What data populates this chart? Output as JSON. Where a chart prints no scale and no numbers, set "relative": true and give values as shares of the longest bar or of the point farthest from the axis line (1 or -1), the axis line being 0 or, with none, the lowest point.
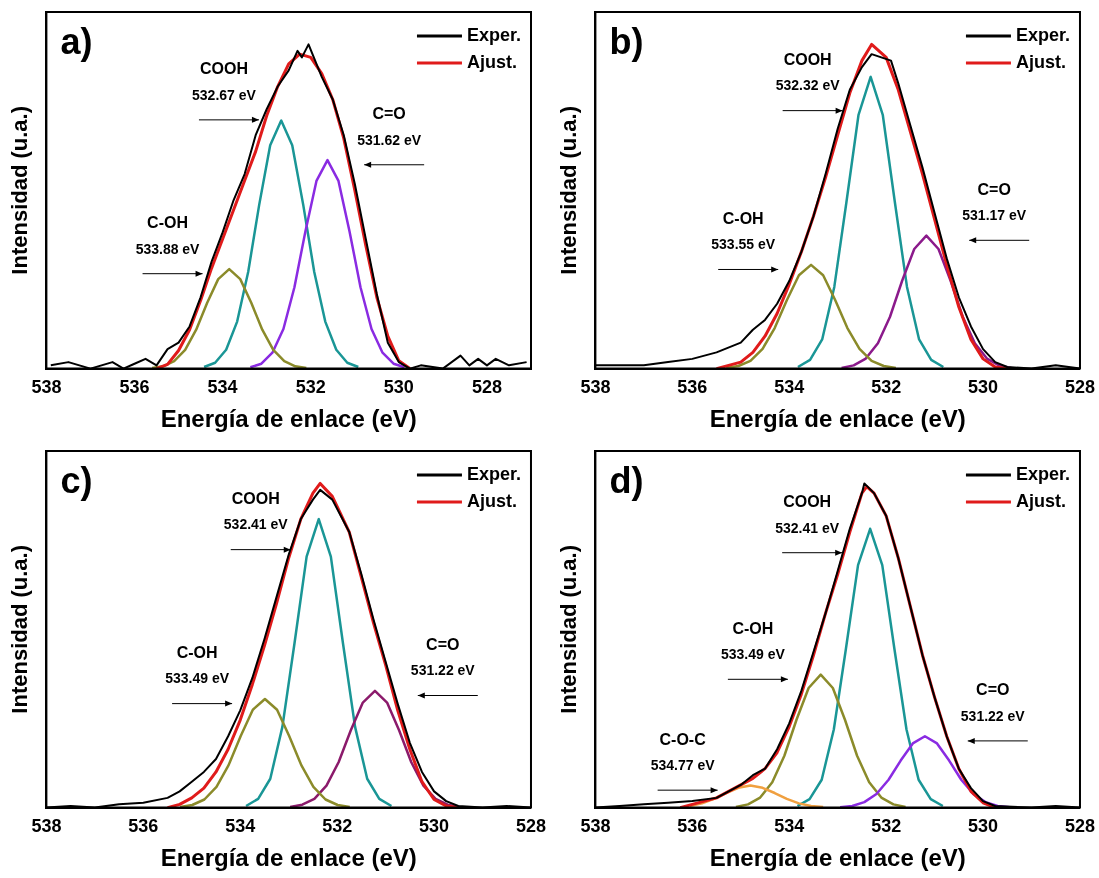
{
  "chart_data": [
    {
      "type": "line",
      "title": "a)",
      "xlabel": "Energía de enlace (eV)",
      "ylabel": "Intensidad (u.a.)",
      "relative": true,
      "legend": "top right",
      "xlim": [
        538,
        527
      ],
      "xticks": [
        538,
        536,
        534,
        532,
        530,
        528
      ],
      "annotations": [
        "COOH",
        "532.67 eV",
        "C=O",
        "531.62 eV",
        "C-OH",
        "533.88 eV"
      ],
      "series": [
        {
          "name": "Exper.",
          "color": "#000000",
          "x": [
            537.9,
            537.5,
            537,
            536.5,
            536.25,
            536,
            535.75,
            535.5,
            535.25,
            535,
            534.75,
            534.5,
            534.25,
            534,
            533.75,
            533.5,
            533.25,
            533,
            532.75,
            532.5,
            532.3,
            532.2,
            532.05,
            531.9,
            531.75,
            531.5,
            531.25,
            531,
            530.75,
            530.5,
            530.25,
            530,
            529.75,
            529.5,
            529,
            528.6,
            528.4,
            528.2,
            528,
            527.8,
            527.5,
            527.1
          ],
          "values": [
            0.01,
            0.02,
            0,
            0.02,
            0,
            0.015,
            0.03,
            0.01,
            0.06,
            0.08,
            0.13,
            0.22,
            0.33,
            0.42,
            0.52,
            0.6,
            0.72,
            0.8,
            0.87,
            0.92,
            0.98,
            0.96,
            1,
            0.95,
            0.9,
            0.83,
            0.72,
            0.57,
            0.4,
            0.23,
            0.08,
            0.02,
            0,
            0.01,
            0,
            0.04,
            0.01,
            0.03,
            0.01,
            0.03,
            0.01,
            0.02
          ]
        },
        {
          "name": "Ajust.",
          "color": "#e01b1b",
          "x": [
            535.5,
            535.25,
            535,
            534.75,
            534.5,
            534.25,
            534,
            533.75,
            533.5,
            533.25,
            533,
            532.75,
            532.5,
            532.25,
            532,
            531.75,
            531.5,
            531.25,
            531,
            530.75,
            530.5,
            530.25,
            530,
            529.75
          ],
          "values": [
            0,
            0.013,
            0.056,
            0.12,
            0.21,
            0.31,
            0.4,
            0.49,
            0.58,
            0.67,
            0.78,
            0.87,
            0.94,
            0.97,
            0.96,
            0.91,
            0.83,
            0.71,
            0.55,
            0.38,
            0.22,
            0.1,
            0.024,
            0
          ]
        },
        {
          "color": "#1a9696",
          "x": [
            530.92,
            531.17,
            531.42,
            531.67,
            531.92,
            532.17,
            532.42,
            532.67,
            532.92,
            533.17,
            533.42,
            533.67,
            533.92,
            534.17,
            534.42
          ],
          "values": [
            0.005,
            0.018,
            0.058,
            0.145,
            0.298,
            0.505,
            0.689,
            0.765,
            0.689,
            0.505,
            0.298,
            0.145,
            0.058,
            0.018,
            0.005
          ]
        },
        {
          "color": "#8a2be2",
          "x": [
            529.87,
            530.12,
            530.37,
            530.62,
            530.87,
            531.12,
            531.37,
            531.62,
            531.87,
            532.12,
            532.37,
            532.62,
            532.87,
            533.12,
            533.37
          ],
          "values": [
            0.004,
            0.015,
            0.049,
            0.122,
            0.251,
            0.424,
            0.579,
            0.643,
            0.579,
            0.424,
            0.251,
            0.122,
            0.049,
            0.015,
            0.004
          ]
        },
        {
          "color": "#8b8b2a",
          "x": [
            532.1,
            532.35,
            532.6,
            532.85,
            533.1,
            533.35,
            533.6,
            533.85,
            534.1,
            534.35,
            534.6,
            534.85,
            535.1,
            535.35,
            535.6
          ],
          "values": [
            0.002,
            0.007,
            0.023,
            0.058,
            0.12,
            0.203,
            0.276,
            0.307,
            0.276,
            0.203,
            0.12,
            0.058,
            0.023,
            0.007,
            0.002
          ]
        }
      ]
    },
    {
      "type": "line",
      "title": "b)",
      "xlabel": "Energía de enlace (eV)",
      "ylabel": "Intensidad (u.a.)",
      "relative": true,
      "legend": "top right",
      "xlim": [
        538,
        528
      ],
      "xticks": [
        538,
        536,
        534,
        532,
        530,
        528
      ],
      "annotations": [
        "COOH",
        "532.32 eV",
        "C=O",
        "531.17 eV",
        "C-OH",
        "533.55 eV"
      ],
      "series": [
        {
          "name": "Exper.",
          "color": "#000000",
          "x": [
            538,
            537.5,
            537,
            536.5,
            536,
            535.5,
            535,
            534.75,
            534.5,
            534.25,
            534,
            533.75,
            533.5,
            533.25,
            533,
            532.75,
            532.5,
            532.3,
            532.1,
            531.9,
            531.75,
            531.5,
            531.25,
            531,
            530.75,
            530.5,
            530.25,
            530,
            529.75,
            529.5,
            529,
            528.5,
            528
          ],
          "values": [
            0.01,
            0.01,
            0.01,
            0.02,
            0.03,
            0.05,
            0.08,
            0.12,
            0.15,
            0.2,
            0.27,
            0.36,
            0.47,
            0.6,
            0.74,
            0.86,
            0.93,
            0.97,
            0.96,
            0.95,
            0.88,
            0.75,
            0.62,
            0.48,
            0.34,
            0.22,
            0.13,
            0.06,
            0.02,
            0.005,
            0,
            0.01,
            0
          ]
        },
        {
          "name": "Ajust.",
          "color": "#e01b1b",
          "x": [
            535.5,
            535,
            534.75,
            534.5,
            534.25,
            534,
            533.75,
            533.5,
            533.25,
            533,
            532.75,
            532.5,
            532.3,
            532,
            531.75,
            531.5,
            531.25,
            531,
            530.75,
            530.5,
            530.25,
            530,
            529.75,
            529.5
          ],
          "values": [
            0,
            0.02,
            0.05,
            0.1,
            0.17,
            0.26,
            0.36,
            0.47,
            0.59,
            0.72,
            0.85,
            0.95,
            1,
            0.96,
            0.86,
            0.73,
            0.6,
            0.46,
            0.32,
            0.19,
            0.09,
            0.03,
            0.005,
            0
          ]
        },
        {
          "color": "#1a9696",
          "x": [
            530.82,
            531.07,
            531.32,
            531.57,
            531.82,
            532.07,
            532.32,
            532.57,
            532.82,
            533.07,
            533.32,
            533.57,
            533.82
          ],
          "values": [
            0.005,
            0.027,
            0.09,
            0.252,
            0.513,
            0.783,
            0.9,
            0.783,
            0.513,
            0.252,
            0.09,
            0.027,
            0.005
          ]
        },
        {
          "color": "#8b1a8b",
          "x": [
            529.42,
            529.67,
            529.92,
            530.17,
            530.42,
            530.67,
            530.92,
            531.17,
            531.42,
            531.67,
            531.92,
            532.17,
            532.42,
            532.67,
            532.92
          ],
          "values": [
            0.002,
            0.01,
            0.031,
            0.078,
            0.16,
            0.271,
            0.369,
            0.41,
            0.369,
            0.271,
            0.16,
            0.078,
            0.031,
            0.01,
            0.002
          ]
        },
        {
          "color": "#8b8b2a",
          "x": [
            531.8,
            532.05,
            532.3,
            532.55,
            532.8,
            533.05,
            533.3,
            533.55,
            533.8,
            534.05,
            534.3,
            534.55,
            534.8,
            535.05,
            535.3
          ],
          "values": [
            0.002,
            0.008,
            0.024,
            0.061,
            0.125,
            0.211,
            0.288,
            0.32,
            0.288,
            0.211,
            0.125,
            0.061,
            0.024,
            0.008,
            0.002
          ]
        }
      ]
    },
    {
      "type": "line",
      "title": "c)",
      "xlabel": "Energía de enlace (eV)",
      "ylabel": "Intensidad (u.a.)",
      "relative": true,
      "legend": "top right",
      "xlim": [
        538,
        528
      ],
      "xticks": [
        538,
        536,
        534,
        532,
        530,
        528
      ],
      "annotations": [
        "COOH",
        "532.41 eV",
        "C=O",
        "531.22 eV",
        "C-OH",
        "533.49 eV"
      ],
      "series": [
        {
          "name": "Exper.",
          "color": "#000000",
          "x": [
            538,
            537.5,
            537,
            536.5,
            536,
            535.5,
            535.25,
            535,
            534.75,
            534.5,
            534.25,
            534,
            533.75,
            533.5,
            533.25,
            533,
            532.75,
            532.5,
            532.35,
            532.1,
            531.75,
            531.5,
            531.25,
            531,
            530.75,
            530.5,
            530.25,
            530,
            529.75,
            529.5,
            529,
            528.5,
            528
          ],
          "values": [
            0,
            0.005,
            0,
            0.01,
            0.015,
            0.03,
            0.05,
            0.08,
            0.11,
            0.15,
            0.22,
            0.3,
            0.4,
            0.52,
            0.65,
            0.78,
            0.89,
            0.95,
            0.98,
            0.95,
            0.85,
            0.72,
            0.58,
            0.45,
            0.32,
            0.2,
            0.11,
            0.05,
            0.02,
            0.005,
            0,
            0.005,
            0
          ]
        },
        {
          "name": "Ajust.",
          "color": "#e01b1b",
          "x": [
            535.5,
            535.25,
            535,
            534.75,
            534.5,
            534.25,
            534,
            533.75,
            533.5,
            533.25,
            533,
            532.75,
            532.5,
            532.35,
            532.1,
            531.75,
            531.5,
            531.25,
            531,
            530.75,
            530.5,
            530.25,
            530,
            529.75,
            529.5
          ],
          "values": [
            0,
            0.01,
            0.03,
            0.06,
            0.11,
            0.18,
            0.27,
            0.38,
            0.5,
            0.63,
            0.77,
            0.89,
            0.97,
            1,
            0.96,
            0.85,
            0.71,
            0.57,
            0.44,
            0.3,
            0.18,
            0.08,
            0.025,
            0.005,
            0
          ]
        },
        {
          "color": "#1a9696",
          "x": [
            530.88,
            531.13,
            531.38,
            531.63,
            531.88,
            532.13,
            532.38,
            532.63,
            532.88,
            533.13,
            533.38,
            533.63,
            533.88
          ],
          "values": [
            0.005,
            0.027,
            0.089,
            0.249,
            0.507,
            0.774,
            0.89,
            0.774,
            0.507,
            0.249,
            0.089,
            0.027,
            0.005
          ]
        },
        {
          "color": "#8b1a6b",
          "x": [
            529.47,
            529.72,
            529.97,
            530.22,
            530.47,
            530.72,
            530.97,
            531.22,
            531.47,
            531.72,
            531.97,
            532.22,
            532.47,
            532.72,
            532.97
          ],
          "values": [
            0.002,
            0.009,
            0.027,
            0.068,
            0.14,
            0.238,
            0.324,
            0.36,
            0.324,
            0.238,
            0.14,
            0.068,
            0.027,
            0.009,
            0.002
          ]
        },
        {
          "color": "#8b8b2a",
          "x": [
            531.74,
            531.99,
            532.24,
            532.49,
            532.74,
            532.99,
            533.24,
            533.49,
            533.74,
            533.99,
            534.24,
            534.49,
            534.74,
            534.99,
            535.24
          ],
          "values": [
            0.002,
            0.008,
            0.025,
            0.064,
            0.131,
            0.221,
            0.302,
            0.335,
            0.302,
            0.221,
            0.131,
            0.064,
            0.025,
            0.008,
            0.002
          ]
        }
      ]
    },
    {
      "type": "line",
      "title": "d)",
      "xlabel": "Energía de enlace (eV)",
      "ylabel": "Intensidad (u.a.)",
      "relative": true,
      "legend": "top right",
      "xlim": [
        538,
        528
      ],
      "xticks": [
        538,
        536,
        534,
        532,
        530,
        528
      ],
      "annotations": [
        "COOH",
        "532.41 eV",
        "C-OH",
        "533.49 eV",
        "C=O",
        "531.22 eV",
        "C-O-C",
        "534.77 eV"
      ],
      "series": [
        {
          "name": "Exper.",
          "color": "#000000",
          "x": [
            538,
            537.5,
            537,
            536.5,
            536,
            535.5,
            535.25,
            535,
            534.75,
            534.5,
            534.25,
            534,
            533.75,
            533.5,
            533.25,
            533,
            532.75,
            532.5,
            532.45,
            532.25,
            532,
            531.75,
            531.5,
            531.25,
            531,
            530.75,
            530.5,
            530.25,
            530,
            529.75,
            529,
            528.5,
            528
          ],
          "values": [
            0,
            0.005,
            0.01,
            0.015,
            0.02,
            0.03,
            0.05,
            0.07,
            0.1,
            0.12,
            0.18,
            0.26,
            0.36,
            0.48,
            0.6,
            0.73,
            0.86,
            0.97,
            1,
            0.97,
            0.9,
            0.77,
            0.62,
            0.47,
            0.34,
            0.22,
            0.12,
            0.06,
            0.02,
            0.005,
            0,
            0.005,
            0
          ]
        },
        {
          "name": "Ajust.",
          "color": "#e01b1b",
          "x": [
            536.25,
            536,
            535.5,
            535.25,
            535,
            534.75,
            534.5,
            534.25,
            534,
            533.75,
            533.5,
            533.25,
            533,
            532.75,
            532.5,
            532.4,
            532.25,
            532,
            531.75,
            531.5,
            531.25,
            531,
            530.75,
            530.5,
            530.25,
            530,
            529.75
          ],
          "values": [
            0,
            0.01,
            0.03,
            0.05,
            0.07,
            0.09,
            0.12,
            0.17,
            0.25,
            0.35,
            0.47,
            0.6,
            0.72,
            0.85,
            0.97,
            0.99,
            0.97,
            0.9,
            0.77,
            0.62,
            0.47,
            0.34,
            0.22,
            0.12,
            0.05,
            0.015,
            0
          ]
        },
        {
          "color": "#1a9696",
          "x": [
            530.83,
            531.08,
            531.33,
            531.58,
            531.83,
            532.08,
            532.33,
            532.58,
            532.83,
            533.08,
            533.33,
            533.58,
            533.83
          ],
          "values": [
            0.005,
            0.026,
            0.086,
            0.241,
            0.49,
            0.748,
            0.86,
            0.748,
            0.49,
            0.241,
            0.086,
            0.026,
            0.005
          ]
        },
        {
          "color": "#8b8b2a",
          "x": [
            531.6,
            531.85,
            532.1,
            532.35,
            532.6,
            532.85,
            533.1,
            533.35,
            533.6,
            533.85,
            534.1,
            534.35,
            534.6,
            534.85,
            535.1
          ],
          "values": [
            0.002,
            0.01,
            0.031,
            0.078,
            0.16,
            0.271,
            0.369,
            0.41,
            0.369,
            0.271,
            0.16,
            0.078,
            0.031,
            0.01,
            0.002
          ]
        },
        {
          "color": "#8a2be2",
          "x": [
            529.45,
            529.7,
            529.95,
            530.2,
            530.45,
            530.7,
            530.95,
            531.2,
            531.45,
            531.7,
            531.95,
            532.2,
            532.45,
            532.7,
            532.95
          ],
          "values": [
            0.001,
            0.005,
            0.017,
            0.042,
            0.086,
            0.145,
            0.198,
            0.22,
            0.198,
            0.145,
            0.086,
            0.042,
            0.017,
            0.005,
            0.001
          ]
        },
        {
          "color": "#f0a040",
          "x": [
            533.3,
            533.55,
            533.8,
            534.05,
            534.3,
            534.55,
            534.8,
            535.05,
            535.3,
            535.55,
            535.8,
            536.05
          ],
          "values": [
            0.002,
            0.005,
            0.013,
            0.027,
            0.045,
            0.061,
            0.068,
            0.061,
            0.045,
            0.027,
            0.013,
            0.005
          ]
        }
      ]
    }
  ]
}
